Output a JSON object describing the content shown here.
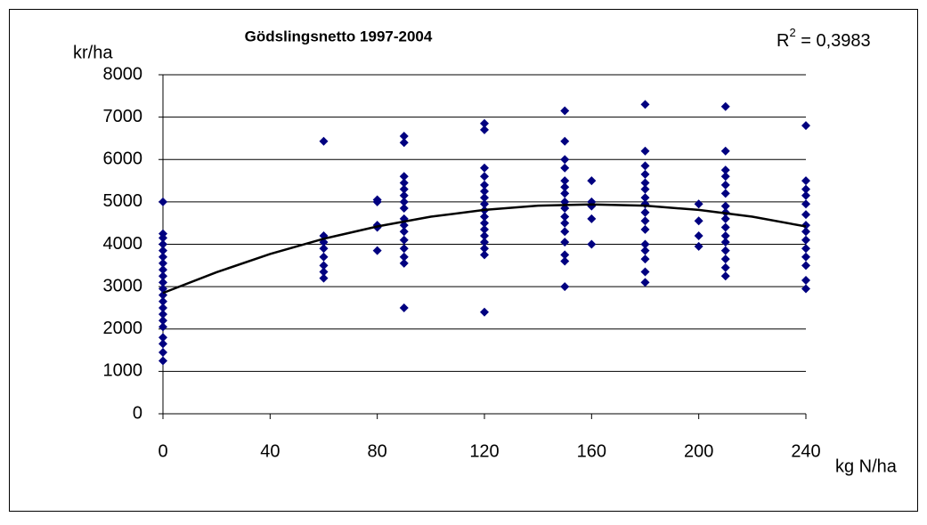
{
  "chart_data": {
    "type": "scatter",
    "title": "Gödslingsnetto 1997-2004",
    "y_label": "kr/ha",
    "x_label": "kg N/ha",
    "annotation": {
      "symbol": "R",
      "superscript": "2",
      "text": " = 0,3983"
    },
    "xlim": [
      0,
      240
    ],
    "xticks": [
      0,
      40,
      80,
      120,
      160,
      200,
      240
    ],
    "ylim": [
      0,
      8000
    ],
    "yticks": [
      0,
      1000,
      2000,
      3000,
      4000,
      5000,
      6000,
      7000,
      8000
    ],
    "grid": true,
    "series": [
      {
        "color": "#000080",
        "x": [
          0,
          0,
          0,
          0,
          0,
          0,
          0,
          0,
          0,
          0,
          0,
          0,
          0,
          0,
          0,
          0,
          0,
          0,
          0,
          0,
          0,
          60,
          60,
          60,
          60,
          60,
          60,
          60,
          60,
          80,
          80,
          80,
          80,
          80,
          90,
          90,
          90,
          90,
          90,
          90,
          90,
          90,
          90,
          90,
          90,
          90,
          90,
          90,
          90,
          90,
          120,
          120,
          120,
          120,
          120,
          120,
          120,
          120,
          120,
          120,
          120,
          120,
          120,
          120,
          120,
          120,
          120,
          150,
          150,
          150,
          150,
          150,
          150,
          150,
          150,
          150,
          150,
          150,
          150,
          150,
          150,
          150,
          150,
          160,
          160,
          160,
          160,
          160,
          180,
          180,
          180,
          180,
          180,
          180,
          180,
          180,
          180,
          180,
          180,
          180,
          180,
          180,
          180,
          180,
          200,
          200,
          200,
          200,
          210,
          210,
          210,
          210,
          210,
          210,
          210,
          210,
          210,
          210,
          210,
          210,
          210,
          210,
          210,
          210,
          240,
          240,
          240,
          240,
          240,
          240,
          240,
          240,
          240,
          240,
          240,
          240,
          240,
          240
        ],
        "values": [
          5000,
          4250,
          4150,
          4000,
          3850,
          3700,
          3550,
          3400,
          3250,
          3100,
          2950,
          2800,
          2650,
          2500,
          2350,
          2200,
          2050,
          1800,
          1650,
          1450,
          1250,
          6430,
          4200,
          4050,
          3900,
          3700,
          3500,
          3350,
          3200,
          5050,
          5000,
          4450,
          4400,
          3850,
          6550,
          6400,
          5600,
          5450,
          5300,
          5150,
          5000,
          4850,
          4600,
          4450,
          4300,
          4100,
          3900,
          3700,
          3550,
          2500,
          6850,
          6700,
          5800,
          5600,
          5400,
          5250,
          5100,
          4950,
          4800,
          4650,
          4500,
          4350,
          4200,
          4050,
          3900,
          3750,
          2400,
          7150,
          6430,
          6000,
          5800,
          5500,
          5350,
          5200,
          5000,
          4850,
          4650,
          4500,
          4300,
          4050,
          3750,
          3600,
          3000,
          5500,
          5000,
          4900,
          4600,
          4000,
          7300,
          6200,
          5850,
          5650,
          5450,
          5300,
          5100,
          4950,
          4750,
          4550,
          4350,
          4000,
          3850,
          3650,
          3350,
          3100,
          4950,
          4550,
          4200,
          3950,
          7250,
          6200,
          5750,
          5600,
          5400,
          5200,
          4900,
          4750,
          4600,
          4400,
          4200,
          4050,
          3850,
          3650,
          3450,
          3250,
          6800,
          5500,
          5300,
          5150,
          4950,
          4700,
          4450,
          4300,
          4100,
          3900,
          3700,
          3500,
          3150,
          2950
        ]
      },
      {
        "type": "line",
        "color": "#000000",
        "x": [
          0,
          20,
          40,
          60,
          80,
          100,
          120,
          140,
          160,
          180,
          200,
          220,
          240
        ],
        "values": [
          2850,
          3340,
          3770,
          4130,
          4420,
          4650,
          4810,
          4910,
          4940,
          4910,
          4810,
          4650,
          4420
        ]
      }
    ]
  }
}
